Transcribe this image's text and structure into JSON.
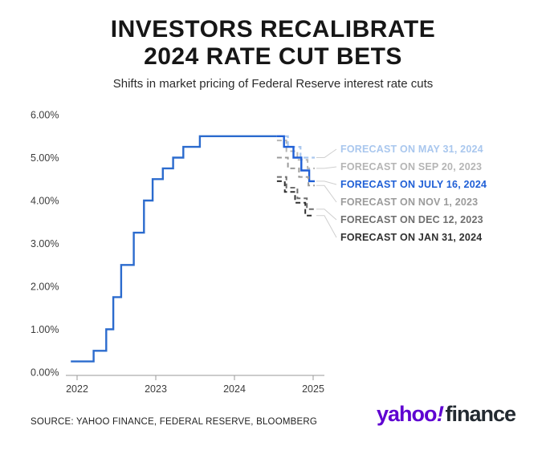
{
  "header": {
    "title_line1": "INVESTORS RECALIBRATE",
    "title_line2": "2024 RATE CUT BETS",
    "subtitle": "Shifts in market pricing of Federal Reserve interest rate cuts"
  },
  "footer": {
    "source": "SOURCE: YAHOO FINANCE, FEDERAL RESERVE, BLOOMBERG",
    "logo_yahoo": "yahoo",
    "logo_bang": "!",
    "logo_finance": "finance",
    "logo_purple": "#5f01d1",
    "logo_dark": "#232a31"
  },
  "chart_data": {
    "type": "line",
    "title": "INVESTORS RECALIBRATE 2024 RATE CUT BETS",
    "subtitle": "Shifts in market pricing of Federal Reserve interest rate cuts",
    "unit": "percent",
    "xlim": [
      2021.9,
      2025.12
    ],
    "ylim": [
      0,
      6
    ],
    "grid": false,
    "legend_position": "right",
    "axis_color": "#9a9a9a",
    "tick_label_color": "#3c3c3c",
    "leader_line_color": "#cfcfcf",
    "y_ticks": [
      {
        "value": 6,
        "label": "6.00%"
      },
      {
        "value": 5,
        "label": "5.00%"
      },
      {
        "value": 4,
        "label": "4.00%"
      },
      {
        "value": 3,
        "label": "3.00%"
      },
      {
        "value": 2,
        "label": "2.00%"
      },
      {
        "value": 1,
        "label": "1.00%"
      },
      {
        "value": 0,
        "label": "0.00%"
      }
    ],
    "x_ticks": [
      {
        "value": 2022,
        "label": "2022"
      },
      {
        "value": 2023,
        "label": "2023"
      },
      {
        "value": 2024,
        "label": "2024"
      },
      {
        "value": 2025,
        "label": "2025"
      }
    ],
    "series": [
      {
        "name": "fed-funds-history",
        "label": "",
        "color": "#2b6bce",
        "style": "solid",
        "width": 2.4,
        "points": [
          [
            2021.92,
            0.25
          ],
          [
            2022.21,
            0.25
          ],
          [
            2022.21,
            0.5
          ],
          [
            2022.37,
            0.5
          ],
          [
            2022.37,
            1.0
          ],
          [
            2022.46,
            1.0
          ],
          [
            2022.46,
            1.75
          ],
          [
            2022.56,
            1.75
          ],
          [
            2022.56,
            2.5
          ],
          [
            2022.72,
            2.5
          ],
          [
            2022.72,
            3.25
          ],
          [
            2022.85,
            3.25
          ],
          [
            2022.85,
            4.0
          ],
          [
            2022.96,
            4.0
          ],
          [
            2022.96,
            4.5
          ],
          [
            2023.09,
            4.5
          ],
          [
            2023.09,
            4.75
          ],
          [
            2023.22,
            4.75
          ],
          [
            2023.22,
            5.0
          ],
          [
            2023.35,
            5.0
          ],
          [
            2023.35,
            5.25
          ],
          [
            2023.56,
            5.25
          ],
          [
            2023.56,
            5.5
          ],
          [
            2024.54,
            5.5
          ]
        ]
      },
      {
        "name": "forecast-may-31-2024",
        "label": "FORECAST ON MAY 31, 2024",
        "color": "#a9c7ee",
        "style": "dashed",
        "width": 2.2,
        "points": [
          [
            2024.54,
            5.5
          ],
          [
            2024.68,
            5.5
          ],
          [
            2024.68,
            5.25
          ],
          [
            2024.84,
            5.25
          ],
          [
            2024.84,
            5.0
          ],
          [
            2025.02,
            5.0
          ]
        ]
      },
      {
        "name": "forecast-sep-20-2023",
        "label": "FORECAST ON SEP 20, 2023",
        "color": "#b5b5b5",
        "style": "dashed",
        "width": 2,
        "points": [
          [
            2024.54,
            5.4
          ],
          [
            2024.66,
            5.4
          ],
          [
            2024.66,
            5.15
          ],
          [
            2024.8,
            5.15
          ],
          [
            2024.8,
            4.95
          ],
          [
            2024.93,
            4.95
          ],
          [
            2024.93,
            4.75
          ],
          [
            2025.02,
            4.75
          ]
        ]
      },
      {
        "name": "forecast-july-16-2024",
        "label": "FORECAST ON JULY 16, 2024",
        "color": "#1f5fd6",
        "style": "solid",
        "width": 2.4,
        "points": [
          [
            2024.54,
            5.5
          ],
          [
            2024.63,
            5.5
          ],
          [
            2024.63,
            5.25
          ],
          [
            2024.75,
            5.25
          ],
          [
            2024.75,
            5.0
          ],
          [
            2024.85,
            5.0
          ],
          [
            2024.85,
            4.7
          ],
          [
            2024.95,
            4.7
          ],
          [
            2024.95,
            4.45
          ],
          [
            2025.02,
            4.45
          ]
        ]
      },
      {
        "name": "forecast-nov-1-2023",
        "label": "FORECAST ON NOV 1, 2023",
        "color": "#9b9b9b",
        "style": "dashed",
        "width": 2,
        "points": [
          [
            2024.54,
            5.0
          ],
          [
            2024.68,
            5.0
          ],
          [
            2024.68,
            4.75
          ],
          [
            2024.82,
            4.75
          ],
          [
            2024.82,
            4.55
          ],
          [
            2024.94,
            4.55
          ],
          [
            2024.94,
            4.35
          ],
          [
            2025.02,
            4.35
          ]
        ]
      },
      {
        "name": "forecast-dec-12-2023",
        "label": "FORECAST ON DEC 12, 2023",
        "color": "#6e6e6e",
        "style": "dashed",
        "width": 2,
        "points": [
          [
            2024.54,
            4.55
          ],
          [
            2024.66,
            4.55
          ],
          [
            2024.66,
            4.3
          ],
          [
            2024.8,
            4.3
          ],
          [
            2024.8,
            4.05
          ],
          [
            2024.92,
            4.05
          ],
          [
            2024.92,
            3.8
          ],
          [
            2025.02,
            3.8
          ]
        ]
      },
      {
        "name": "forecast-jan-31-2024",
        "label": "FORECAST ON JAN 31, 2024",
        "color": "#303030",
        "style": "dashed",
        "width": 2,
        "points": [
          [
            2024.54,
            4.45
          ],
          [
            2024.64,
            4.45
          ],
          [
            2024.64,
            4.2
          ],
          [
            2024.77,
            4.2
          ],
          [
            2024.77,
            3.95
          ],
          [
            2024.9,
            3.95
          ],
          [
            2024.9,
            3.65
          ],
          [
            2025.02,
            3.65
          ]
        ]
      }
    ],
    "legend": [
      {
        "label": "FORECAST ON MAY 31, 2024",
        "color": "#a9c7ee",
        "series": "forecast-may-31-2024"
      },
      {
        "label": "FORECAST ON SEP 20, 2023",
        "color": "#b5b5b5",
        "series": "forecast-sep-20-2023"
      },
      {
        "label": "FORECAST ON JULY 16, 2024",
        "color": "#1f5fd6",
        "series": "forecast-july-16-2024"
      },
      {
        "label": "FORECAST ON NOV 1, 2023",
        "color": "#9b9b9b",
        "series": "forecast-nov-1-2023"
      },
      {
        "label": "FORECAST ON DEC 12, 2023",
        "color": "#6e6e6e",
        "series": "forecast-dec-12-2023"
      },
      {
        "label": "FORECAST ON JAN 31, 2024",
        "color": "#303030",
        "series": "forecast-jan-31-2024"
      }
    ]
  }
}
